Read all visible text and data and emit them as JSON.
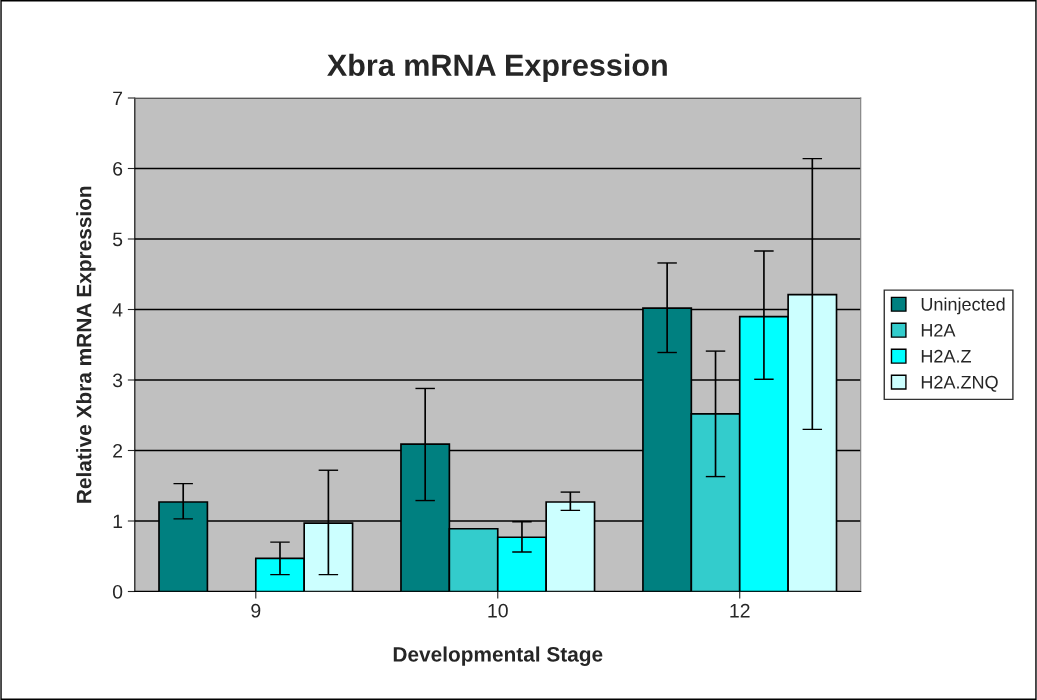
{
  "chart_data": {
    "type": "bar",
    "title": "Xbra mRNA Expression",
    "xlabel": "Developmental Stage",
    "ylabel": "Relative Xbra mRNA Expression",
    "categories": [
      "9",
      "10",
      "12"
    ],
    "series": [
      {
        "name": "Uninjected",
        "color": "#008080",
        "values": [
          1.27,
          2.09,
          4.02
        ],
        "errors": [
          [
            1.03,
            1.53
          ],
          [
            1.29,
            2.88
          ],
          [
            3.39,
            4.66
          ]
        ]
      },
      {
        "name": "H2A",
        "color": "#33cccc",
        "values": [
          null,
          0.89,
          2.52
        ],
        "errors": [
          null,
          null,
          [
            1.63,
            3.41
          ]
        ]
      },
      {
        "name": "H2A.Z",
        "color": "#00ffff",
        "values": [
          0.47,
          0.77,
          3.9
        ],
        "errors": [
          [
            0.24,
            0.7
          ],
          [
            0.56,
            0.99
          ],
          [
            3.01,
            4.83
          ]
        ]
      },
      {
        "name": "H2A.ZNQ",
        "color": "#ccffff",
        "values": [
          0.97,
          1.27,
          4.21
        ],
        "errors": [
          [
            0.24,
            1.72
          ],
          [
            1.15,
            1.41
          ],
          [
            2.3,
            6.14
          ]
        ]
      }
    ],
    "ylim": [
      0,
      7
    ],
    "yticks": [
      0,
      1,
      2,
      3,
      4,
      5,
      6,
      7
    ],
    "grid": "y",
    "legend": "right"
  }
}
